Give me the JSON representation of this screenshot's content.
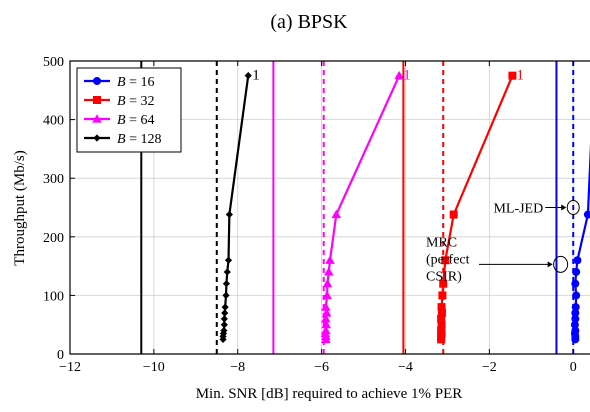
{
  "chart_data": {
    "type": "line",
    "title": "(a) BPSK",
    "xlabel": "Min. SNR [dB] required to achieve 1% PER",
    "ylabel": "Throughput (Mb/s)",
    "xlim": [
      -12,
      0.4
    ],
    "ylim": [
      0,
      500
    ],
    "xticks": [
      -12,
      -10,
      -8,
      -6,
      -4,
      -2,
      0
    ],
    "xtick_labels": [
      "−12",
      "−10",
      "−8",
      "−6",
      "−4",
      "−2",
      "0"
    ],
    "yticks": [
      0,
      100,
      200,
      300,
      400,
      500
    ],
    "ytick_labels": [
      "0",
      "100",
      "200",
      "300",
      "400",
      "500"
    ],
    "grid": true,
    "legend_position": "top-left",
    "series": [
      {
        "name": "B = 16",
        "legend_var": "B",
        "legend_value": "16",
        "color": "#0000ff",
        "marker": "circle",
        "end_label": "1",
        "mrc_x": -0.4,
        "mljed_x": 0.0,
        "x": [
          0.05,
          0.05,
          0.04,
          0.05,
          0.04,
          0.05,
          0.05,
          0.06,
          0.07,
          0.05,
          0.07,
          0.1,
          0.35,
          0.5
        ],
        "y": [
          25,
          30,
          35,
          40,
          50,
          60,
          70,
          80,
          100,
          120,
          140,
          160,
          238,
          475
        ]
      },
      {
        "name": "B = 32",
        "legend_var": "B",
        "legend_value": "32",
        "color": "#ff0000",
        "marker": "square",
        "end_label": "1",
        "mrc_x": -4.05,
        "mljed_x": -3.1,
        "x": [
          -3.15,
          -3.15,
          -3.14,
          -3.15,
          -3.14,
          -3.15,
          -3.13,
          -3.14,
          -3.12,
          -3.1,
          -3.05,
          -2.85,
          -1.45
        ],
        "y": [
          25,
          30,
          35,
          40,
          50,
          60,
          70,
          80,
          100,
          120,
          160,
          238,
          475
        ]
      },
      {
        "name": "B = 64",
        "legend_var": "B",
        "legend_value": "64",
        "color": "#ff00ff",
        "marker": "triangle",
        "end_label": "1",
        "mrc_x": -7.15,
        "mljed_x": -5.95,
        "x": [
          -5.9,
          -5.9,
          -5.91,
          -5.9,
          -5.89,
          -5.9,
          -5.88,
          -5.9,
          -5.87,
          -5.86,
          -5.83,
          -5.8,
          -5.65,
          -4.15
        ],
        "y": [
          25,
          30,
          35,
          40,
          50,
          60,
          70,
          80,
          100,
          120,
          140,
          160,
          238,
          475
        ]
      },
      {
        "name": "B = 128",
        "legend_var": "B",
        "legend_value": "128",
        "color": "#000000",
        "marker": "diamond",
        "end_label": "1",
        "mrc_x": -10.3,
        "mljed_x": -8.5,
        "x": [
          -8.35,
          -8.35,
          -8.34,
          -8.33,
          -8.32,
          -8.32,
          -8.31,
          -8.3,
          -8.28,
          -8.27,
          -8.25,
          -8.22,
          -8.2,
          -7.75
        ],
        "y": [
          25,
          30,
          35,
          40,
          50,
          60,
          70,
          80,
          100,
          120,
          140,
          160,
          238,
          475
        ]
      }
    ],
    "annotations": {
      "mljed": {
        "text": "ML-JED",
        "x": 0.0,
        "y": 250
      },
      "mrc": {
        "lines": [
          "MRC",
          "(perfect",
          "CSIR)"
        ],
        "x": -0.3,
        "y": 153
      }
    }
  }
}
